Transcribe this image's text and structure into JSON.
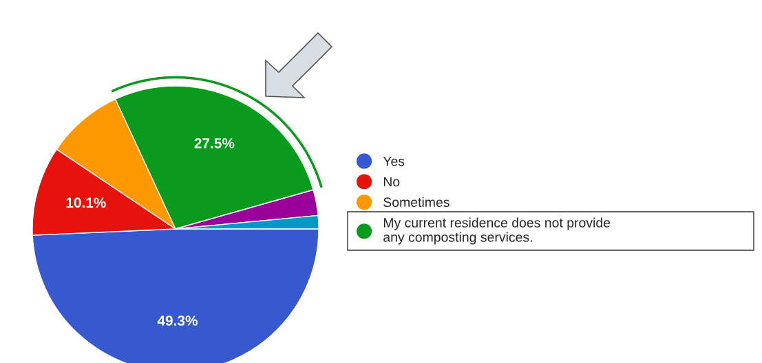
{
  "chart_data": {
    "type": "pie",
    "categories": [
      "Yes",
      "No",
      "Sometimes",
      "My current residence does not provide\nany composting services.",
      null,
      null
    ],
    "values": [
      49.3,
      10.1,
      8.7,
      27.5,
      2.9,
      1.5
    ],
    "colors": [
      "#3759cf",
      "#e8120c",
      "#ff9900",
      "#0a9b1e",
      "#990099",
      "#0099c6"
    ],
    "value_labels": [
      "49.3%",
      "10.1%",
      null,
      "27.5%",
      null,
      null
    ],
    "legend": "right"
  }
}
